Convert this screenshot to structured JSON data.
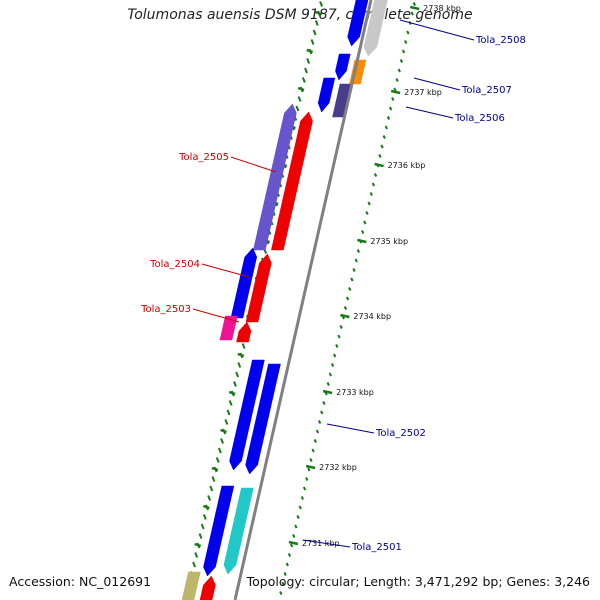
{
  "title": "Tolumonas auensis DSM 9187, complete genome",
  "accession": "Accession: NC_012691",
  "summary": "Topology: circular; Length: 3,471,292 bp; Genes: 3,246",
  "colors": {
    "backbone": "#808080",
    "tick": "#1a7a1a",
    "forward_label": "#00008b",
    "reverse_label": "#cc0000",
    "blue": "#0000ee",
    "slate": "#6655cc",
    "red": "#ee0000",
    "gray": "#c8c8c8",
    "orange": "#ff8c00",
    "darkslate": "#483d8b",
    "magenta": "#ee1493",
    "cyan": "#20c8c8",
    "khaki": "#bdb76b"
  },
  "scale_labels": [
    {
      "text": "2738 kbp",
      "faded": true
    },
    {
      "text": "2737 kbp"
    },
    {
      "text": "2736 kbp"
    },
    {
      "text": "2735 kbp"
    },
    {
      "text": "2734 kbp"
    },
    {
      "text": "2733 kbp"
    },
    {
      "text": "2732 kbp"
    },
    {
      "text": "2731 kbp"
    }
  ],
  "gene_labels": [
    {
      "text": "Tola_2508",
      "strand": "forward"
    },
    {
      "text": "Tola_2507",
      "strand": "forward"
    },
    {
      "text": "Tola_2506",
      "strand": "forward"
    },
    {
      "text": "Tola_2505",
      "strand": "reverse"
    },
    {
      "text": "Tola_2504",
      "strand": "reverse"
    },
    {
      "text": "Tola_2503",
      "strand": "reverse"
    },
    {
      "text": "Tola_2502",
      "strand": "forward"
    },
    {
      "text": "Tola_2501",
      "strand": "forward"
    }
  ]
}
